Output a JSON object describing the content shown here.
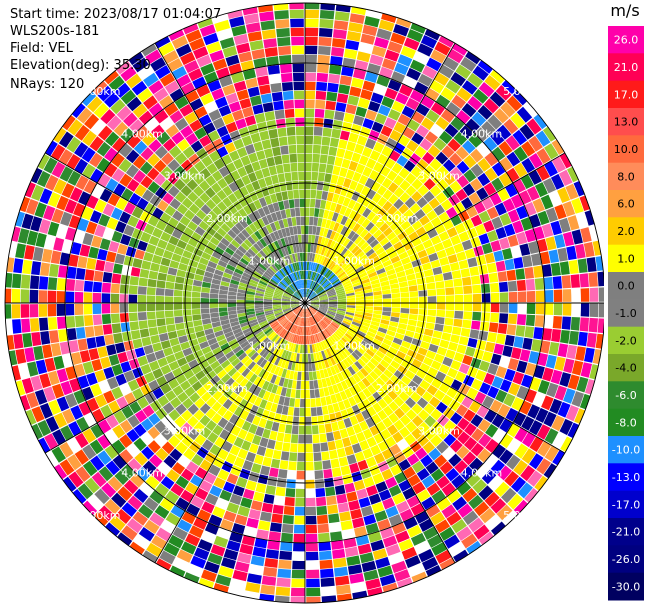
{
  "header": {
    "start_time": "Start time: 2023/08/17 01:04:07",
    "instrument": "WLS200s-181",
    "field": "Field: VEL",
    "elevation": "Elevation(deg): 35.30",
    "nrays": "NRays: 120"
  },
  "ppi": {
    "range_rings_km": [
      1.0,
      2.0,
      3.0,
      4.0,
      5.0
    ],
    "range_labels": [
      "1.00km",
      "2.00km",
      "3.00km",
      "4.00km",
      "5.00km"
    ],
    "nrays": 120,
    "spokes_deg": [
      0,
      30,
      60,
      90,
      120,
      150,
      180,
      210,
      240,
      270,
      300,
      330
    ]
  },
  "colorbar": {
    "unit": "m/s",
    "ticks": [
      "26.0",
      "21.0",
      "17.0",
      "13.0",
      "10.0",
      "8.0",
      "6.0",
      "2.0",
      "1.0",
      "0.0",
      "-1.0",
      "-2.0",
      "-4.0",
      "-6.0",
      "-8.0",
      "-10.0",
      "-13.0",
      "-17.0",
      "-21.0",
      "-26.0",
      "-30.0"
    ],
    "colors": [
      "#ff00aa",
      "#ff0055",
      "#ff1a1a",
      "#ff4d4d",
      "#ff6a3d",
      "#ff8c5a",
      "#ffa040",
      "#ffcc00",
      "#ffff00",
      "#7f7f7f",
      "#808080",
      "#9acd32",
      "#7aa82a",
      "#2e8b2e",
      "#228b22",
      "#1e90ff",
      "#0000ff",
      "#0000cd",
      "#00008b",
      "#000080",
      "#000060"
    ]
  }
}
